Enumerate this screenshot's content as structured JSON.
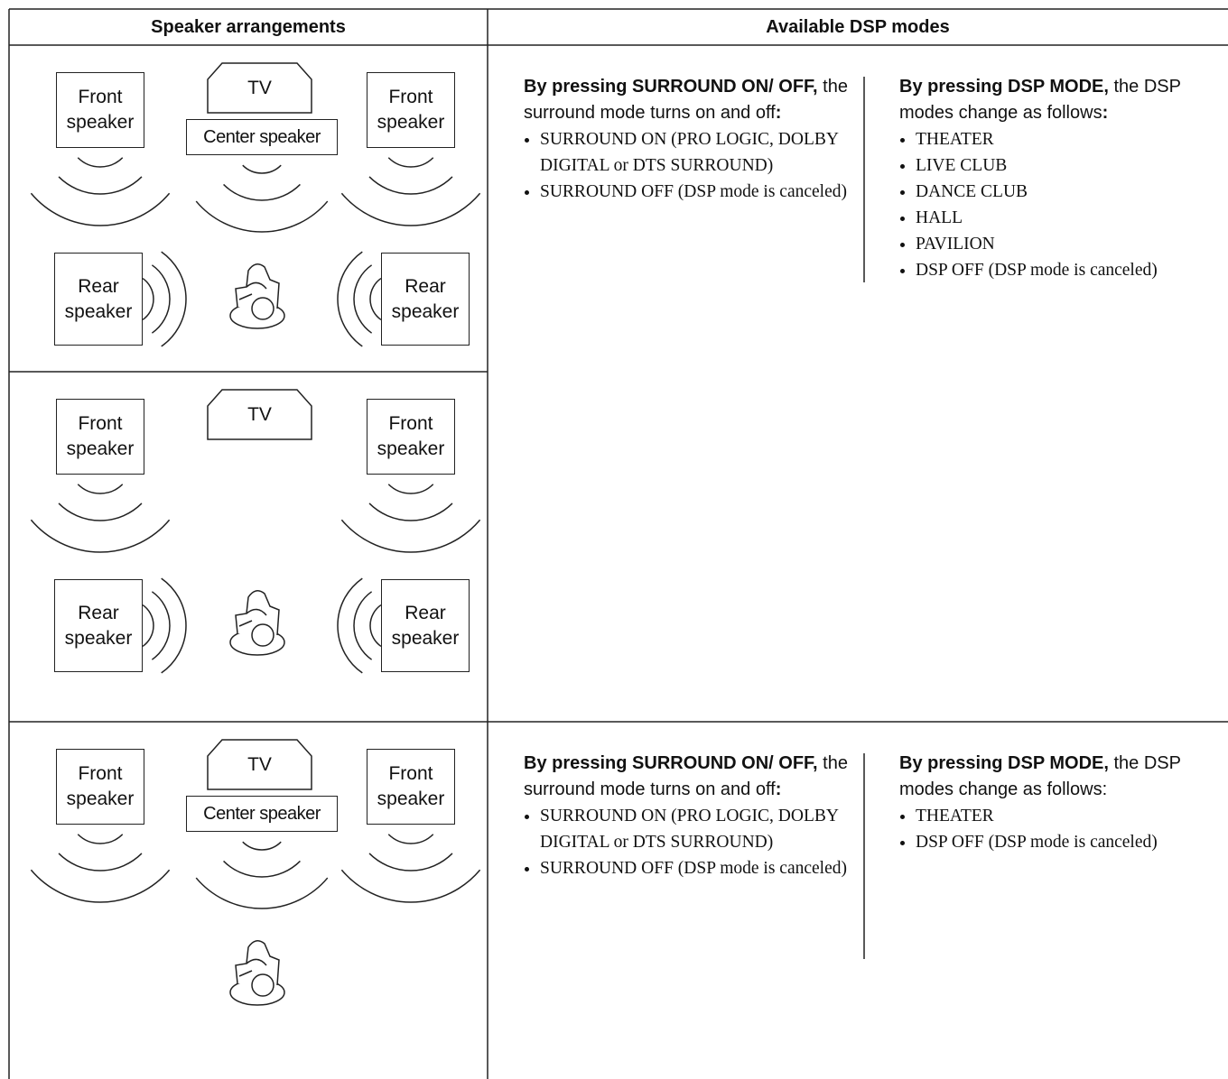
{
  "table": {
    "headers": [
      "Speaker arrangements",
      "Available DSP modes"
    ],
    "rows": [
      {
        "speakers": {
          "front_left": "Front speaker",
          "tv": "TV",
          "center": "Center speaker",
          "front_right": "Front speaker",
          "rear_left": "Rear speaker",
          "rear_right": "Rear speaker"
        },
        "modes": [
          {
            "intro": [
              {
                "text": "By pressing SURROUND ON/ OFF,",
                "bold": true
              },
              {
                "text": " the surround mode turns on and off",
                "bold": false
              },
              {
                "text": ":",
                "bold": true
              }
            ],
            "items": [
              "SURROUND ON (PRO LOGIC, DOLBY DIGITAL or DTS SURROUND)",
              "SURROUND OFF (DSP mode is canceled)"
            ]
          },
          {
            "intro": [
              {
                "text": "By pressing DSP MODE,",
                "bold": true
              },
              {
                "text": " the DSP modes change as follows",
                "bold": false
              },
              {
                "text": ":",
                "bold": true
              }
            ],
            "items": [
              "THEATER",
              "LIVE CLUB",
              "DANCE CLUB",
              "HALL",
              "PAVILION",
              "DSP OFF (DSP mode is canceled)"
            ]
          }
        ]
      },
      {
        "speakers": {
          "front_left": "Front speaker",
          "tv": "TV",
          "front_right": "Front speaker",
          "rear_left": "Rear speaker",
          "rear_right": "Rear speaker"
        }
      },
      {
        "speakers": {
          "front_left": "Front speaker",
          "tv": "TV",
          "center": "Center speaker",
          "front_right": "Front speaker"
        },
        "modes": [
          {
            "intro": [
              {
                "text": "By pressing SURROUND ON/ OFF,",
                "bold": true
              },
              {
                "text": " the surround mode turns on and off",
                "bold": false
              },
              {
                "text": ":",
                "bold": true
              }
            ],
            "items": [
              "SURROUND ON (PRO LOGIC, DOLBY DIGITAL or DTS SURROUND)",
              "SURROUND OFF (DSP mode is canceled)"
            ]
          },
          {
            "intro": [
              {
                "text": "By pressing DSP MODE,",
                "bold": true
              },
              {
                "text": " the DSP modes change as follows:",
                "bold": false
              }
            ],
            "items": [
              "THEATER",
              "DSP OFF (DSP mode is canceled)"
            ]
          }
        ]
      }
    ]
  }
}
